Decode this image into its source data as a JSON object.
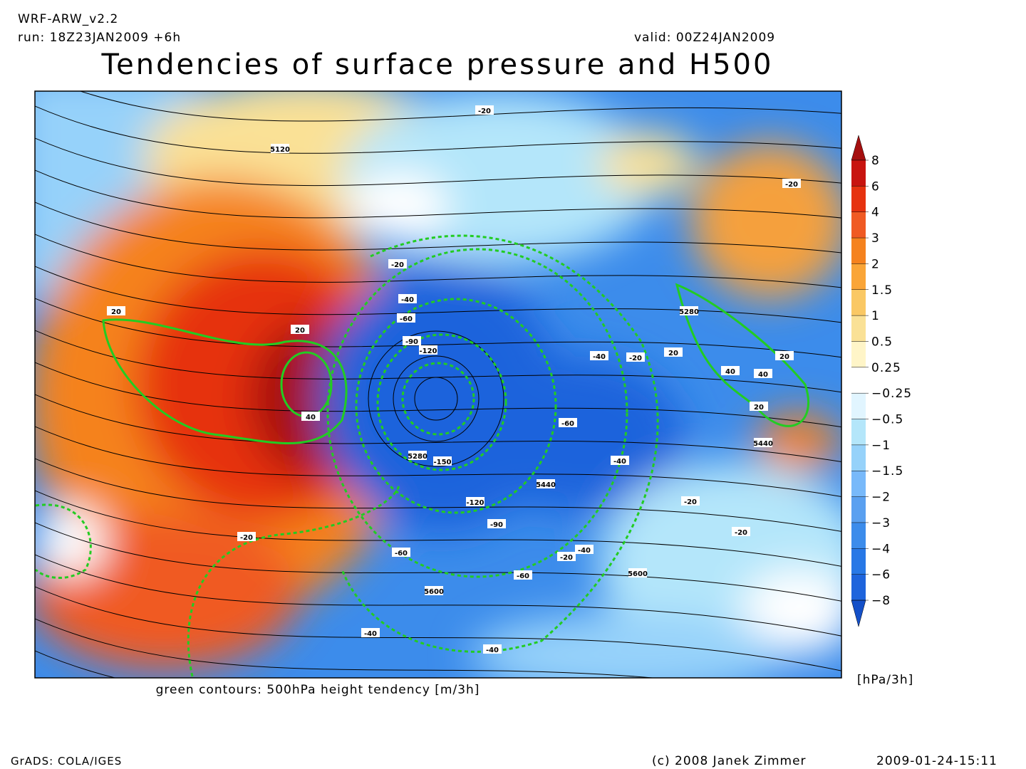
{
  "header": {
    "model": "WRF-ARW_v2.2",
    "run": "run: 18Z23JAN2009 +6h",
    "valid": "valid: 00Z24JAN2009",
    "title": "Tendencies of surface pressure and H500"
  },
  "map": {
    "caption": "green contours: 500hPa height tendency [m/3h]",
    "contour_labels": [
      "-20",
      "5120",
      "-20",
      "-20",
      "-40",
      "-60",
      "20",
      "20",
      "-90",
      "-120",
      "40",
      "5280",
      "-40",
      "-20",
      "20",
      "20",
      "40",
      "40",
      "20",
      "-60",
      "5280",
      "-150",
      "-40",
      "5440",
      "5440",
      "-120",
      "-20",
      "-90",
      "-20",
      "-20",
      "-60",
      "-20",
      "-40",
      "-60",
      "5600",
      "5600",
      "-40",
      "-40"
    ]
  },
  "colorbar": {
    "unit": "[hPa/3h]",
    "labels": [
      "8",
      "6",
      "4",
      "3",
      "2",
      "1.5",
      "1",
      "0.5",
      "0.25",
      "−0.25",
      "−0.5",
      "−1",
      "−1.5",
      "−2",
      "−3",
      "−4",
      "−6",
      "−8"
    ],
    "colors": [
      "#a50f0f",
      "#c8140f",
      "#e6320f",
      "#f05a23",
      "#f5821e",
      "#faa537",
      "#fac864",
      "#fae196",
      "#fff5c8",
      "#ffffff",
      "#e1f5ff",
      "#b4e6fa",
      "#96d2fa",
      "#78b9fa",
      "#5aa0f0",
      "#3c8ceb",
      "#2878e6",
      "#1e64dc",
      "#1450c8"
    ]
  },
  "footer": {
    "software": "GrADS: COLA/IGES",
    "copyright": "(c) 2008 Janek Zimmer",
    "timestamp": "2009-01-24-15:11"
  }
}
